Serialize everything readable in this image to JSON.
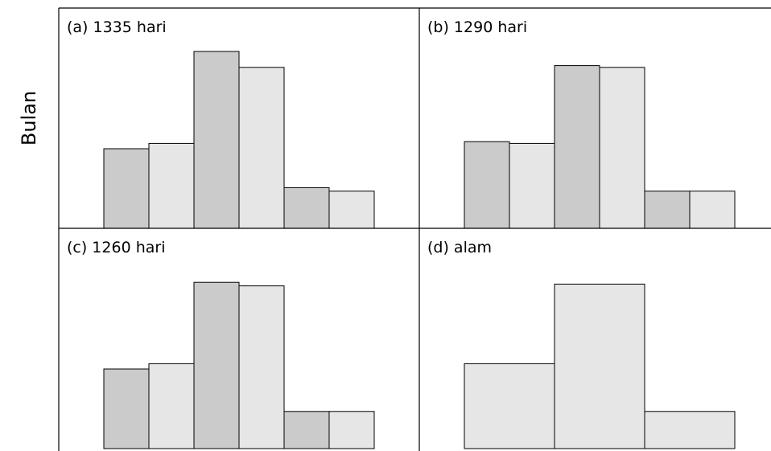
{
  "chart_data": {
    "type": "bar",
    "ylabel": "Bulan",
    "colors": {
      "dark": "#cbcbcb",
      "light": "#e6e6e6"
    },
    "panels": [
      {
        "label": "(a) 1335 hari",
        "bars": [
          {
            "value": 0.45,
            "shade": "dark"
          },
          {
            "value": 0.48,
            "shade": "light"
          },
          {
            "value": 1.0,
            "shade": "dark"
          },
          {
            "value": 0.91,
            "shade": "light"
          },
          {
            "value": 0.23,
            "shade": "dark"
          },
          {
            "value": 0.21,
            "shade": "light"
          }
        ]
      },
      {
        "label": "(b) 1290 hari",
        "bars": [
          {
            "value": 0.49,
            "shade": "dark"
          },
          {
            "value": 0.48,
            "shade": "light"
          },
          {
            "value": 0.92,
            "shade": "dark"
          },
          {
            "value": 0.91,
            "shade": "light"
          },
          {
            "value": 0.21,
            "shade": "dark"
          },
          {
            "value": 0.21,
            "shade": "light"
          }
        ]
      },
      {
        "label": "(c) 1260 hari",
        "bars": [
          {
            "value": 0.45,
            "shade": "dark"
          },
          {
            "value": 0.48,
            "shade": "light"
          },
          {
            "value": 0.94,
            "shade": "dark"
          },
          {
            "value": 0.92,
            "shade": "light"
          },
          {
            "value": 0.21,
            "shade": "dark"
          },
          {
            "value": 0.21,
            "shade": "light"
          }
        ]
      },
      {
        "label": "(d) alam",
        "bars": [
          {
            "value": 0.48,
            "shade": "light",
            "span": 2
          },
          {
            "value": 0.93,
            "shade": "light",
            "span": 2
          },
          {
            "value": 0.21,
            "shade": "light",
            "span": 2
          }
        ]
      }
    ]
  }
}
